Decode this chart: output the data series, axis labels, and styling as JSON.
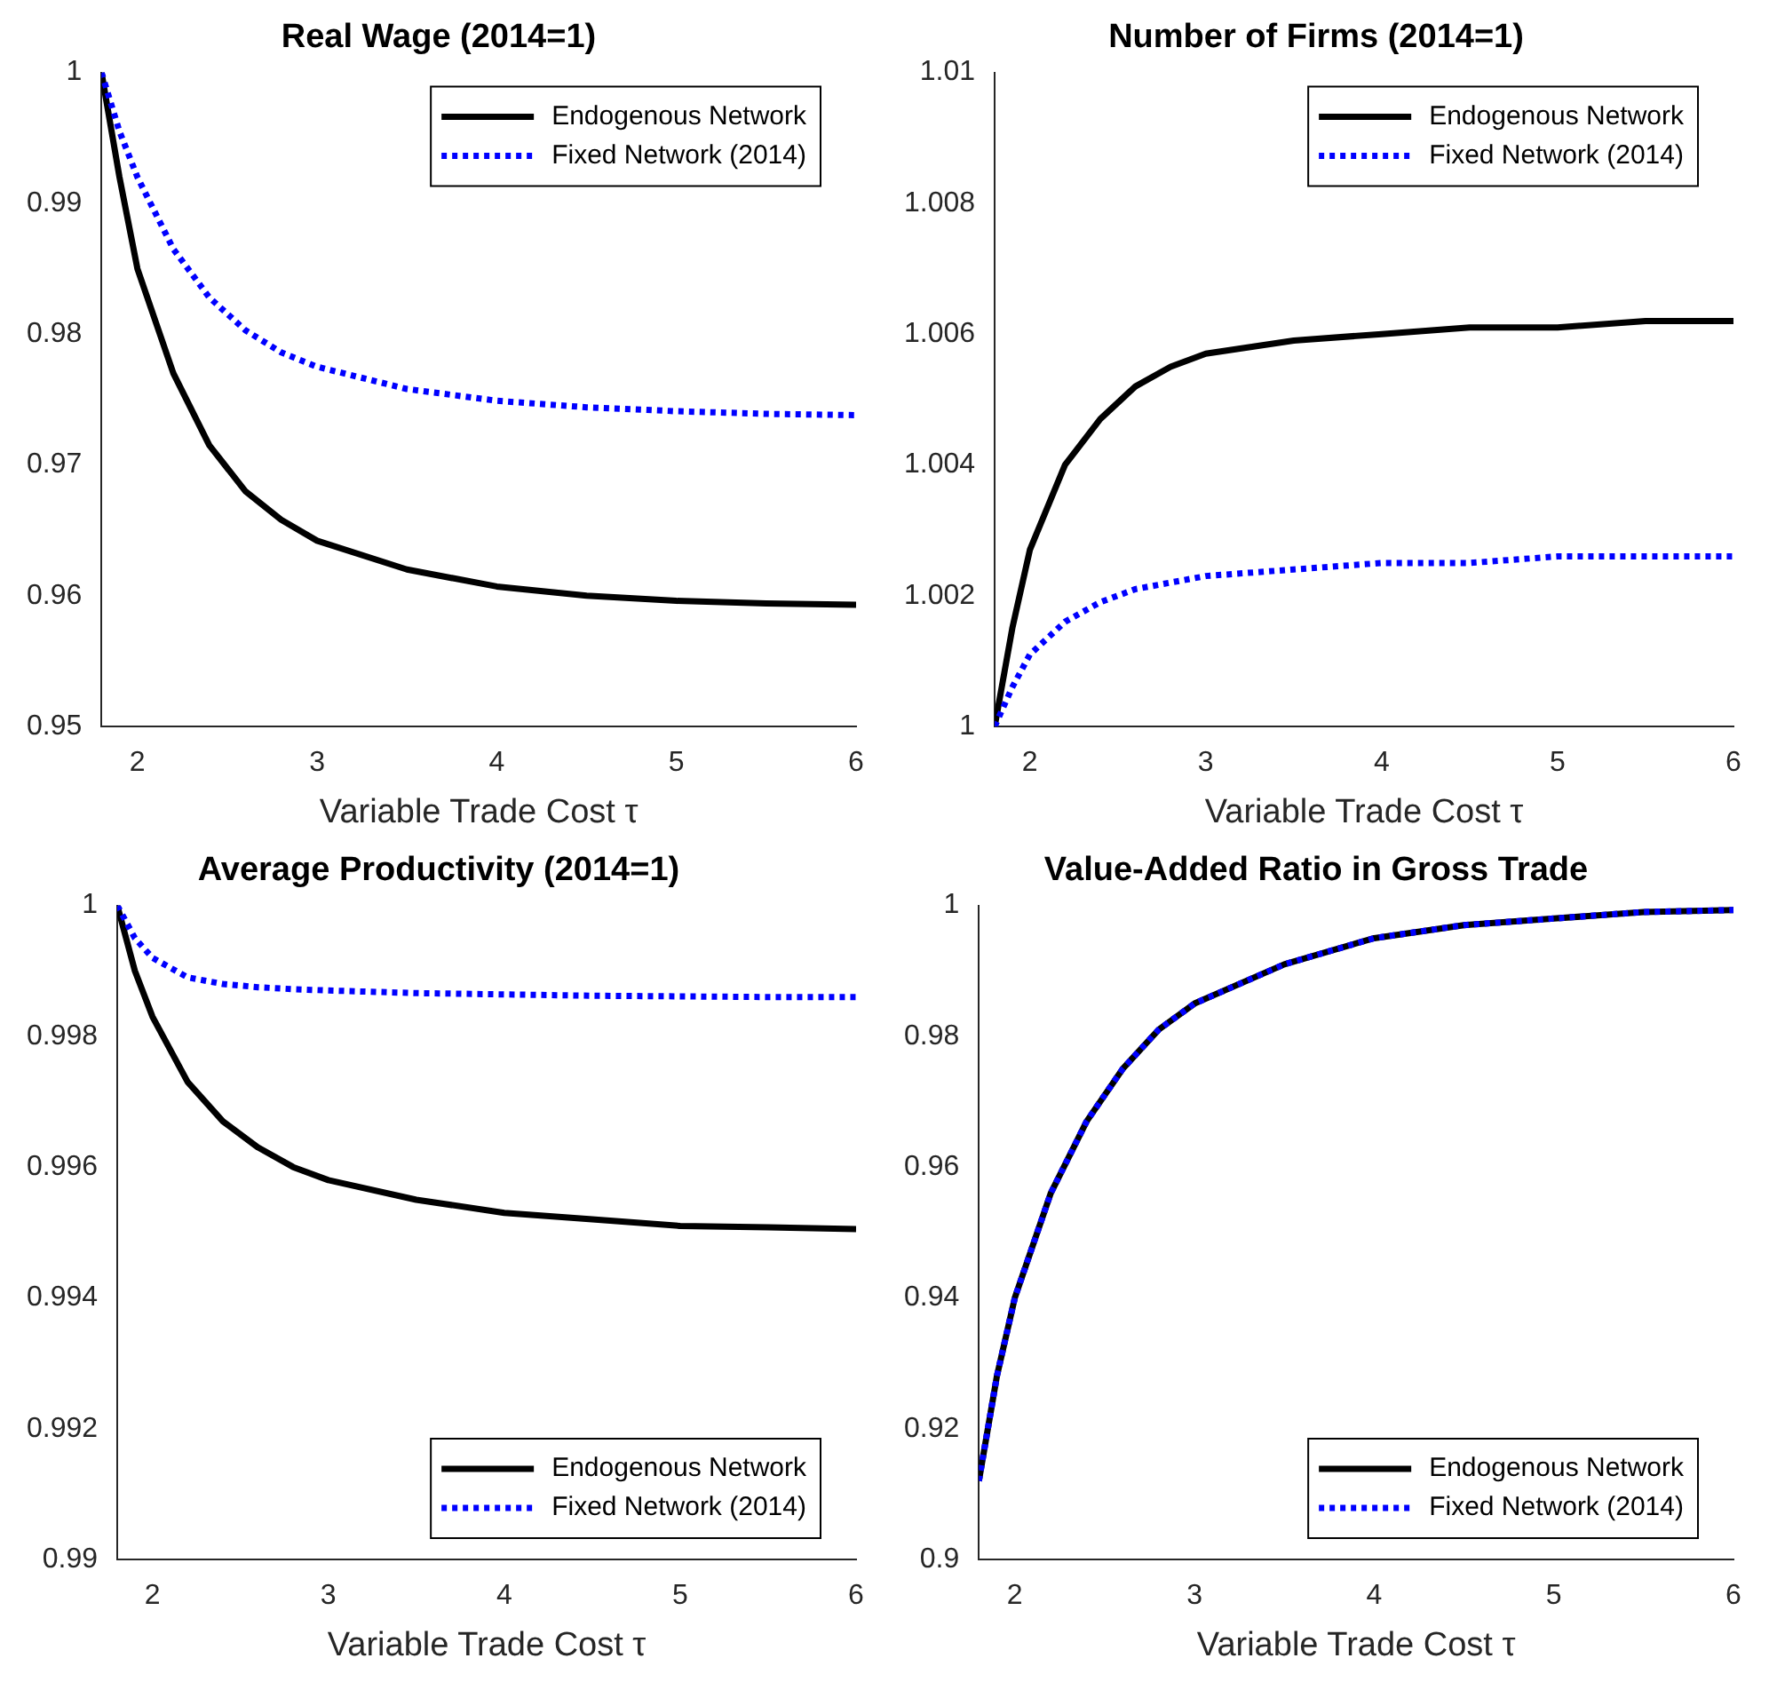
{
  "chart_data": [
    {
      "type": "line",
      "title": "Real Wage (2014=1)",
      "xlabel": "Variable Trade Cost τ",
      "x": [
        1.8,
        1.9,
        2,
        2.2,
        2.4,
        2.6,
        2.8,
        3,
        3.5,
        4,
        4.5,
        5,
        5.5,
        6
      ],
      "xlim": [
        1.8,
        6
      ],
      "xticks": [
        2,
        3,
        4,
        5,
        6
      ],
      "ylim": [
        0.95,
        1
      ],
      "yticks": [
        0.95,
        0.96,
        0.97,
        0.98,
        0.99,
        1
      ],
      "grid": false,
      "legend": "top right",
      "marker": "none",
      "series": [
        {
          "name": "Endogenous Network",
          "color": "#000000",
          "line_style": "solid",
          "values": [
            1,
            0.992,
            0.985,
            0.977,
            0.9715,
            0.968,
            0.9658,
            0.9642,
            0.962,
            0.9607,
            0.96,
            0.9596,
            0.9594,
            0.9593
          ]
        },
        {
          "name": "Fixed Network (2014)",
          "color": "#0000ff",
          "line_style": "dotted",
          "values": [
            1,
            0.9955,
            0.992,
            0.9865,
            0.9828,
            0.9803,
            0.9786,
            0.9775,
            0.9758,
            0.9749,
            0.9744,
            0.9741,
            0.9739,
            0.9738
          ]
        }
      ]
    },
    {
      "type": "line",
      "title": "Number of Firms (2014=1)",
      "xlabel": "Variable Trade Cost τ",
      "x": [
        1.8,
        1.9,
        2,
        2.2,
        2.4,
        2.6,
        2.8,
        3,
        3.5,
        4,
        4.5,
        5,
        5.5,
        6
      ],
      "xlim": [
        1.8,
        6
      ],
      "xticks": [
        2,
        3,
        4,
        5,
        6
      ],
      "ylim": [
        1,
        1.01
      ],
      "yticks": [
        1,
        1.002,
        1.004,
        1.006,
        1.008,
        1.01
      ],
      "grid": false,
      "legend": "top right",
      "marker": "none",
      "series": [
        {
          "name": "Endogenous Network",
          "color": "#000000",
          "line_style": "solid",
          "values": [
            1,
            1.0015,
            1.0027,
            1.004,
            1.0047,
            1.0052,
            1.0055,
            1.0057,
            1.0059,
            1.006,
            1.0061,
            1.0061,
            1.0062,
            1.0062
          ]
        },
        {
          "name": "Fixed Network (2014)",
          "color": "#0000ff",
          "line_style": "dotted",
          "values": [
            1,
            1.0006,
            1.0011,
            1.0016,
            1.0019,
            1.0021,
            1.0022,
            1.0023,
            1.0024,
            1.0025,
            1.0025,
            1.0026,
            1.0026,
            1.0026
          ]
        }
      ]
    },
    {
      "type": "line",
      "title": "Average Productivity (2014=1)",
      "xlabel": "Variable Trade Cost τ",
      "x": [
        1.8,
        1.9,
        2,
        2.2,
        2.4,
        2.6,
        2.8,
        3,
        3.5,
        4,
        4.5,
        5,
        5.5,
        6
      ],
      "xlim": [
        1.8,
        6
      ],
      "xticks": [
        2,
        3,
        4,
        5,
        6
      ],
      "ylim": [
        0.99,
        1
      ],
      "yticks": [
        0.99,
        0.992,
        0.994,
        0.996,
        0.998,
        1
      ],
      "grid": false,
      "legend": "bottom right",
      "marker": "none",
      "series": [
        {
          "name": "Endogenous Network",
          "color": "#000000",
          "line_style": "solid",
          "values": [
            1,
            0.999,
            0.9983,
            0.9973,
            0.9967,
            0.9963,
            0.996,
            0.9958,
            0.9955,
            0.9953,
            0.9952,
            0.9951,
            0.99508,
            0.99505
          ]
        },
        {
          "name": "Fixed Network (2014)",
          "color": "#0000ff",
          "line_style": "dotted",
          "values": [
            1,
            0.9995,
            0.9992,
            0.9989,
            0.9988,
            0.99875,
            0.99872,
            0.9987,
            0.99866,
            0.99864,
            0.99862,
            0.99861,
            0.9986,
            0.9986
          ]
        }
      ]
    },
    {
      "type": "line",
      "title": "Value-Added Ratio in Gross Trade",
      "xlabel": "Variable Trade Cost τ",
      "x": [
        1.8,
        1.9,
        2,
        2.2,
        2.4,
        2.6,
        2.8,
        3,
        3.5,
        4,
        4.5,
        5,
        5.5,
        6
      ],
      "xlim": [
        1.8,
        6
      ],
      "xticks": [
        2,
        3,
        4,
        5,
        6
      ],
      "ylim": [
        0.9,
        1
      ],
      "yticks": [
        0.9,
        0.92,
        0.94,
        0.96,
        0.98,
        1
      ],
      "grid": false,
      "legend": "bottom right",
      "marker": "none",
      "series": [
        {
          "name": "Endogenous Network",
          "color": "#000000",
          "line_style": "solid",
          "values": [
            0.912,
            0.928,
            0.94,
            0.956,
            0.967,
            0.975,
            0.981,
            0.985,
            0.991,
            0.995,
            0.997,
            0.998,
            0.999,
            0.9993
          ]
        },
        {
          "name": "Fixed Network (2014)",
          "color": "#0000ff",
          "line_style": "dotted",
          "values": [
            0.912,
            0.928,
            0.94,
            0.956,
            0.967,
            0.975,
            0.981,
            0.985,
            0.991,
            0.995,
            0.997,
            0.998,
            0.999,
            0.9993
          ]
        }
      ]
    }
  ]
}
